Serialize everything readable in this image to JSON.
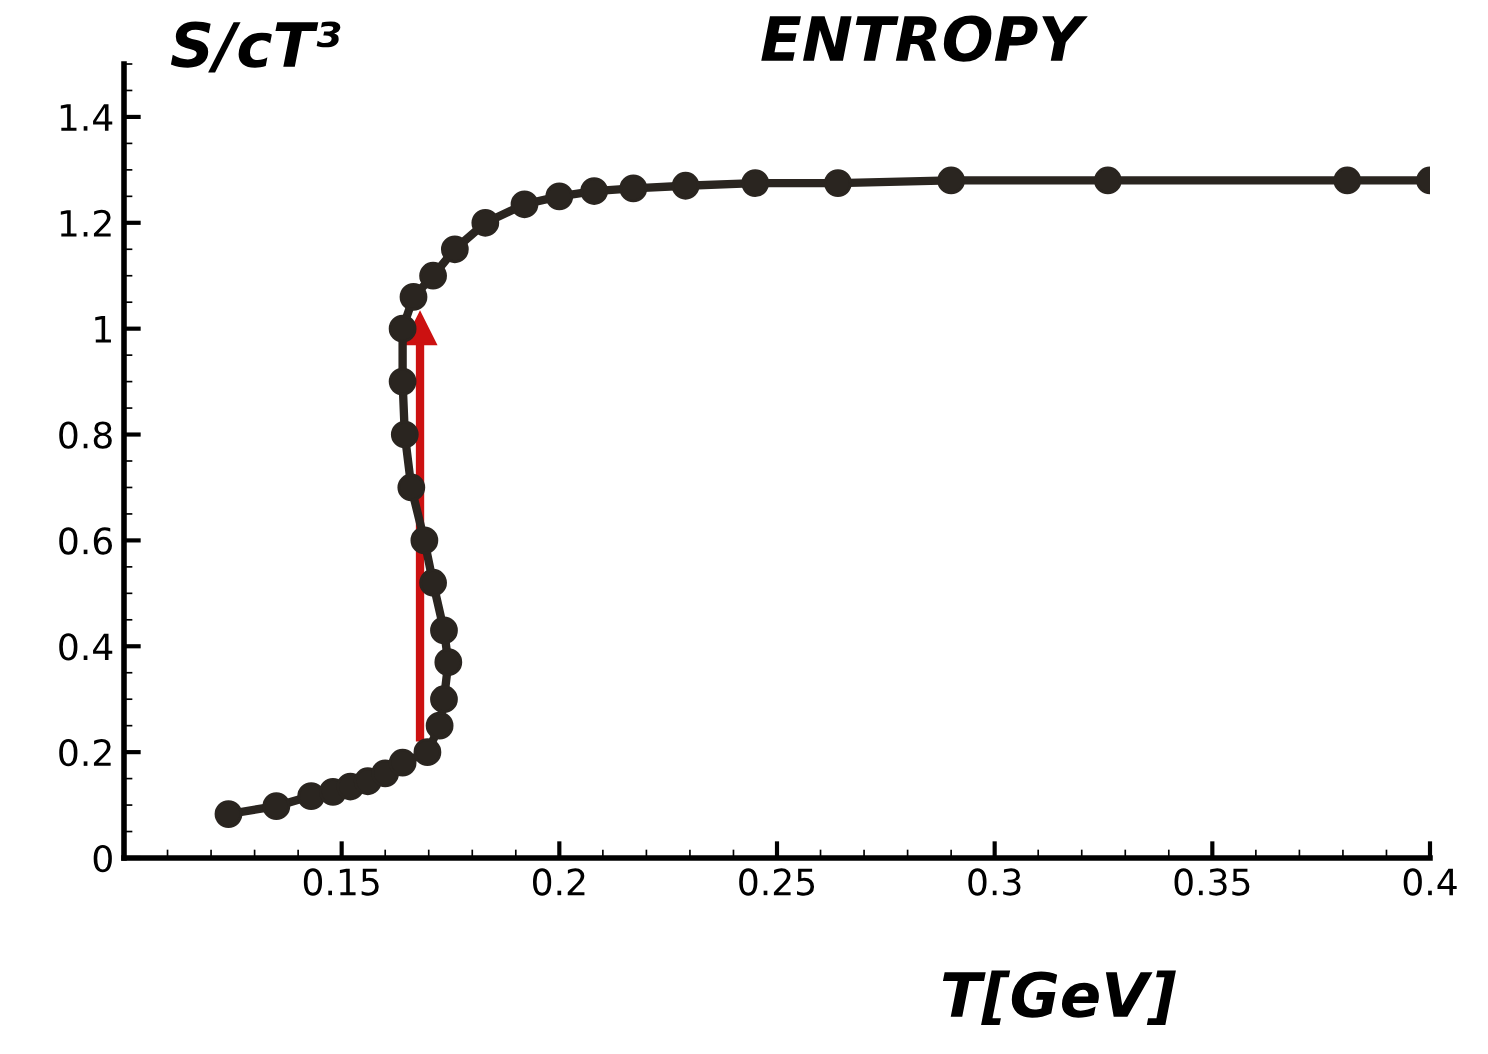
{
  "chart_data": {
    "type": "line",
    "title": "ENTROPY",
    "xlabel": "T[GeV]",
    "ylabel": "S/cT³",
    "xlim": [
      0.1,
      0.4
    ],
    "xticks": [
      0.15,
      0.2,
      0.25,
      0.3,
      0.35,
      0.4
    ],
    "ylim": [
      0,
      1.5
    ],
    "yticks": [
      0,
      0.2,
      0.4,
      0.6,
      0.8,
      1,
      1.2,
      1.4
    ],
    "grid": false,
    "marker": "circle",
    "line_style": "solid",
    "series": [
      {
        "color": "#2a2520",
        "x": [
          0.124,
          0.135,
          0.143,
          0.148,
          0.152,
          0.156,
          0.16,
          0.164,
          0.1697,
          0.1725,
          0.1735,
          0.1745,
          0.1735,
          0.171,
          0.169,
          0.166,
          0.1645,
          0.164,
          0.164,
          0.1665,
          0.171,
          0.176,
          0.183,
          0.192,
          0.2,
          0.208,
          0.217,
          0.229,
          0.245,
          0.264,
          0.29,
          0.326,
          0.381,
          0.4
        ],
        "values": [
          0.083,
          0.098,
          0.117,
          0.125,
          0.135,
          0.145,
          0.16,
          0.18,
          0.2,
          0.25,
          0.3,
          0.37,
          0.43,
          0.52,
          0.6,
          0.7,
          0.8,
          0.9,
          1.0,
          1.06,
          1.1,
          1.15,
          1.2,
          1.235,
          1.25,
          1.26,
          1.265,
          1.27,
          1.275,
          1.275,
          1.28,
          1.28,
          1.28,
          1.28
        ]
      },
      {
        "type": "line",
        "marker": "triangle",
        "color": "#cc1111",
        "x": [
          0.168,
          0.168
        ],
        "values": [
          0.22,
          1.0
        ]
      }
    ]
  }
}
